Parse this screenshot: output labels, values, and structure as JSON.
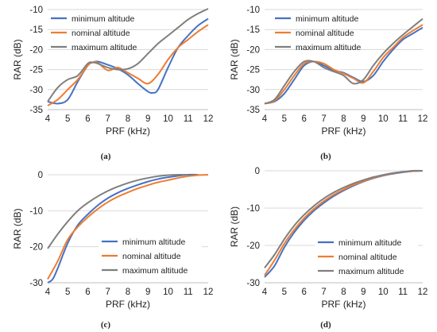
{
  "series_colors": {
    "minimum altitude": "#4472c4",
    "nominal altitude": "#ed7d31",
    "maximum altitude": "#7f7f7f"
  },
  "chart_data": [
    {
      "type": "line",
      "caption": "(a)",
      "xlabel": "PRF (kHz)",
      "ylabel": "RAR (dB)",
      "xlim": [
        4,
        12
      ],
      "ylim": [
        -35,
        -10
      ],
      "xticks": [
        4,
        5,
        6,
        7,
        8,
        9,
        10,
        11,
        12
      ],
      "yticks": [
        -35,
        -30,
        -25,
        -20,
        -15,
        -10
      ],
      "grid": "horizontal",
      "legend": "top-left",
      "series": [
        {
          "name": "minimum altitude",
          "x": [
            4,
            4.5,
            5,
            5.5,
            6,
            6.25,
            6.5,
            7,
            7.5,
            8,
            8.5,
            9,
            9.25,
            9.5,
            10,
            10.5,
            11,
            11.5,
            12
          ],
          "y": [
            -33,
            -33.5,
            -32.5,
            -28,
            -24,
            -23.2,
            -23,
            -23.8,
            -24.8,
            -26.3,
            -28.5,
            -30.5,
            -30.8,
            -30,
            -24.5,
            -19.5,
            -16.5,
            -14,
            -12.3
          ]
        },
        {
          "name": "nominal altitude",
          "x": [
            4,
            4.5,
            5,
            5.5,
            6,
            6.25,
            6.5,
            7,
            7.5,
            8,
            8.5,
            9,
            9.5,
            10,
            10.5,
            11,
            11.5,
            12
          ],
          "y": [
            -34,
            -32.5,
            -30,
            -27.5,
            -24,
            -23.2,
            -23.3,
            -25.2,
            -24.5,
            -25.8,
            -27.2,
            -28.5,
            -26.2,
            -22.5,
            -19.5,
            -17.5,
            -15.5,
            -13.8
          ]
        },
        {
          "name": "maximum altitude",
          "x": [
            4,
            4.5,
            5,
            5.5,
            6,
            6.25,
            6.5,
            7,
            7.5,
            8,
            8.5,
            9,
            9.5,
            10,
            10.5,
            11,
            11.5,
            12
          ],
          "y": [
            -33,
            -29.5,
            -27.5,
            -26.5,
            -23.5,
            -23.2,
            -23.5,
            -24.5,
            -25,
            -24.8,
            -23.5,
            -21,
            -18.5,
            -16.5,
            -14.5,
            -12.5,
            -11,
            -9.8
          ]
        }
      ]
    },
    {
      "type": "line",
      "caption": "(b)",
      "xlabel": "PRF (kHz)",
      "ylabel": "RAR (dB)",
      "xlim": [
        4,
        12
      ],
      "ylim": [
        -35,
        -10
      ],
      "xticks": [
        4,
        5,
        6,
        7,
        8,
        9,
        10,
        11,
        12
      ],
      "yticks": [
        -35,
        -30,
        -25,
        -20,
        -15,
        -10
      ],
      "grid": "horizontal",
      "legend": "top-left",
      "series": [
        {
          "name": "minimum altitude",
          "x": [
            4,
            4.5,
            5,
            5.5,
            6,
            6.5,
            7,
            7.5,
            8,
            8.5,
            9,
            9.5,
            10,
            10.5,
            11,
            11.5,
            12
          ],
          "y": [
            -33.5,
            -33,
            -31,
            -27.5,
            -24,
            -23,
            -24,
            -25.2,
            -25.8,
            -27,
            -28,
            -26.5,
            -23,
            -20,
            -17.5,
            -16,
            -14.5
          ]
        },
        {
          "name": "nominal altitude",
          "x": [
            4,
            4.5,
            5,
            5.5,
            6,
            6.5,
            7,
            7.5,
            8,
            8.5,
            9,
            9.5,
            10,
            10.5,
            11,
            11.5,
            12
          ],
          "y": [
            -33.5,
            -32.8,
            -30,
            -26.5,
            -23.5,
            -23,
            -23.5,
            -25,
            -26,
            -27.2,
            -28.3,
            -25.5,
            -22,
            -19.5,
            -17,
            -15.3,
            -13.8
          ]
        },
        {
          "name": "maximum altitude",
          "x": [
            4,
            4.5,
            5,
            5.5,
            6,
            6.5,
            7,
            7.5,
            8,
            8.5,
            9,
            9.5,
            10,
            10.5,
            11,
            11.5,
            12
          ],
          "y": [
            -33.5,
            -32.5,
            -29,
            -25.5,
            -23,
            -23,
            -24.5,
            -25.5,
            -26.5,
            -28.5,
            -27.5,
            -24,
            -21,
            -18.5,
            -16.3,
            -14.3,
            -12.3
          ]
        }
      ]
    },
    {
      "type": "line",
      "caption": "(c)",
      "xlabel": "PRF (kHz)",
      "ylabel": "RAR (dB)",
      "xlim": [
        4,
        12
      ],
      "ylim": [
        -30,
        0
      ],
      "xticks": [
        4,
        5,
        6,
        7,
        8,
        9,
        10,
        11,
        12
      ],
      "yticks": [
        -30,
        -20,
        -10,
        0
      ],
      "grid": "horizontal",
      "legend": "bottom-right",
      "series": [
        {
          "name": "minimum altitude",
          "x": [
            4,
            4.25,
            4.5,
            5,
            5.5,
            6,
            6.5,
            7,
            7.5,
            8,
            8.5,
            9,
            9.5,
            10,
            10.5,
            11,
            11.5
          ],
          "y": [
            -30,
            -29,
            -26,
            -19,
            -14,
            -11,
            -8.5,
            -6.5,
            -5,
            -3.8,
            -2.8,
            -1.9,
            -1.2,
            -0.7,
            -0.3,
            0,
            0
          ]
        },
        {
          "name": "nominal altitude",
          "x": [
            4,
            4.5,
            5,
            5.5,
            6,
            6.5,
            7,
            7.5,
            8,
            8.5,
            9,
            9.5,
            10,
            10.5,
            11,
            11.5,
            12
          ],
          "y": [
            -29,
            -24,
            -18,
            -14.5,
            -11.8,
            -9.5,
            -7.6,
            -6.1,
            -4.9,
            -3.8,
            -2.9,
            -2.1,
            -1.5,
            -0.9,
            -0.4,
            -0.1,
            0
          ]
        },
        {
          "name": "maximum altitude",
          "x": [
            4,
            4.5,
            5,
            5.5,
            6,
            6.5,
            7,
            7.5,
            8,
            8.5,
            9,
            9.5,
            10,
            10.5,
            11
          ],
          "y": [
            -20.5,
            -16.5,
            -13,
            -10,
            -7.8,
            -6,
            -4.5,
            -3.3,
            -2.3,
            -1.5,
            -0.9,
            -0.4,
            -0.1,
            0,
            0
          ]
        }
      ]
    },
    {
      "type": "line",
      "caption": "(d)",
      "xlabel": "PRF (kHz)",
      "ylabel": "RAR (dB)",
      "xlim": [
        4,
        12
      ],
      "ylim": [
        -30,
        0
      ],
      "xticks": [
        4,
        5,
        6,
        7,
        8,
        9,
        10,
        11,
        12
      ],
      "yticks": [
        -30,
        -20,
        -10,
        0
      ],
      "grid": "horizontal",
      "legend": "bottom-right",
      "series": [
        {
          "name": "minimum altitude",
          "x": [
            4,
            4.5,
            5,
            5.5,
            6,
            6.5,
            7,
            7.5,
            8,
            8.5,
            9,
            9.5,
            10,
            10.5,
            11,
            11.5,
            12
          ],
          "y": [
            -28.5,
            -25.5,
            -20.5,
            -16.5,
            -13.3,
            -10.7,
            -8.6,
            -6.8,
            -5.3,
            -4,
            -2.9,
            -2,
            -1.3,
            -0.8,
            -0.4,
            -0.1,
            0
          ]
        },
        {
          "name": "nominal altitude",
          "x": [
            4,
            4.5,
            5,
            5.5,
            6,
            6.5,
            7,
            7.5,
            8,
            8.5,
            9,
            9.5,
            10,
            10.5,
            11,
            11.5,
            12
          ],
          "y": [
            -28,
            -24,
            -19.5,
            -15.8,
            -12.7,
            -10.2,
            -8.1,
            -6.4,
            -5,
            -3.8,
            -2.8,
            -1.9,
            -1.2,
            -0.7,
            -0.3,
            -0.1,
            0
          ]
        },
        {
          "name": "maximum altitude",
          "x": [
            4,
            4.5,
            5,
            5.5,
            6,
            6.5,
            7,
            7.5,
            8,
            8.5,
            9,
            9.5,
            10,
            10.5,
            11,
            11.5,
            12
          ],
          "y": [
            -26,
            -22.5,
            -18.3,
            -14.7,
            -11.8,
            -9.4,
            -7.4,
            -5.8,
            -4.5,
            -3.4,
            -2.5,
            -1.7,
            -1.1,
            -0.6,
            -0.3,
            0,
            0
          ]
        }
      ]
    }
  ]
}
